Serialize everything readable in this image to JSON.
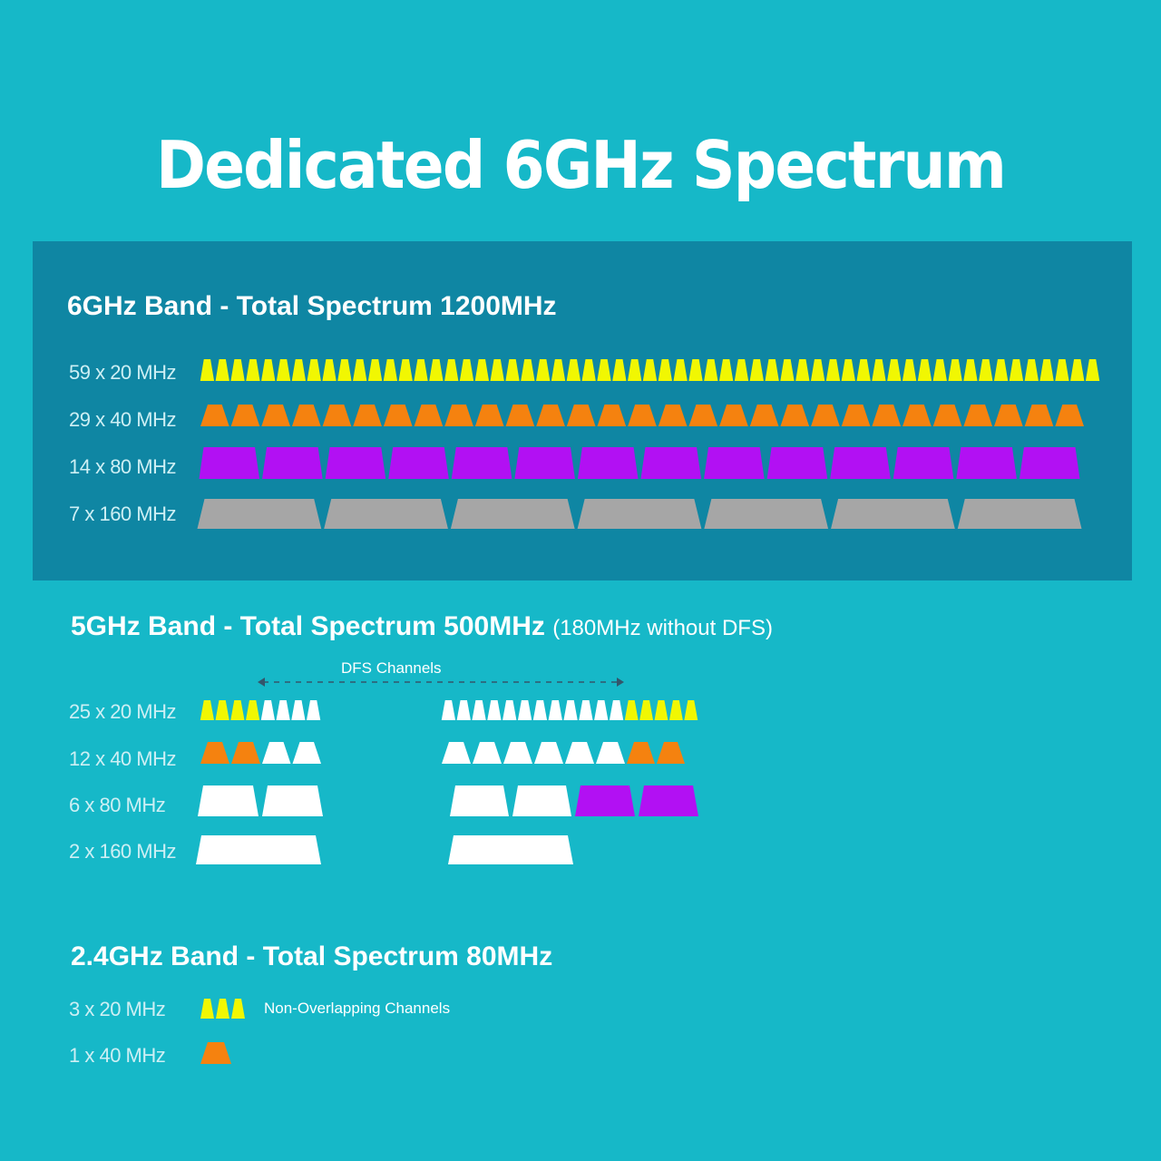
{
  "title": "Dedicated 6GHz Spectrum",
  "colors": {
    "background": "#16b8c8",
    "panel_6ghz": "#0f86a3",
    "ch20": "#f1f702",
    "ch40": "#f5820f",
    "ch80": "#b210f3",
    "ch160": "#a6a6a6",
    "dfs": "#ffffff"
  },
  "band6": {
    "title": "6GHz Band - Total Spectrum 1200MHz",
    "rows": [
      {
        "label": "59 x 20 MHz",
        "count": 59
      },
      {
        "label": "29 x 40 MHz",
        "count": 29
      },
      {
        "label": "14 x 80 MHz",
        "count": 14
      },
      {
        "label": "7 x 160 MHz",
        "count": 7
      }
    ]
  },
  "band5": {
    "title": "5GHz Band - Total Spectrum 500MHz",
    "title_note": "(180MHz without DFS)",
    "dfs_label": "DFS Channels",
    "rows": [
      {
        "label": "25 x 20 MHz",
        "count": 25
      },
      {
        "label": "12 x 40 MHz",
        "count": 12
      },
      {
        "label": "6 x 80 MHz",
        "count": 6
      },
      {
        "label": "2 x 160 MHz",
        "count": 2
      }
    ]
  },
  "band24": {
    "title": "2.4GHz Band - Total Spectrum 80MHz",
    "note": "Non-Overlapping Channels",
    "rows": [
      {
        "label": "3 x 20 MHz",
        "count": 3
      },
      {
        "label": "1 x 40 MHz",
        "count": 1
      }
    ]
  }
}
